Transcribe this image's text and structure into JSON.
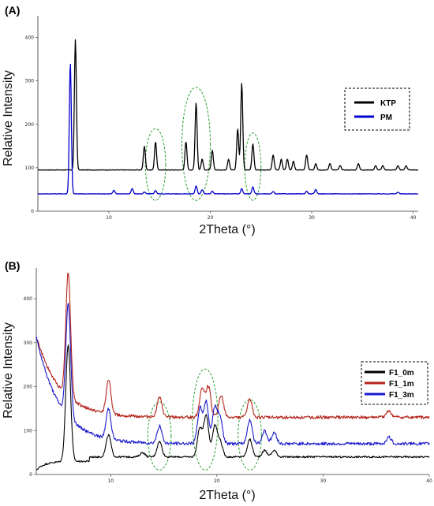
{
  "chart_data": [
    {
      "panel": "(A)",
      "type": "line",
      "xlabel": "2Theta (°)",
      "ylabel": "Relative Intensity",
      "xlim": [
        3,
        40.5
      ],
      "ylim": [
        0,
        450
      ],
      "x_ticks": [
        10,
        20,
        30,
        40
      ],
      "y_ticks": [
        0,
        100,
        200,
        300,
        400
      ],
      "legend": {
        "placement": "right",
        "entries": [
          "KTP",
          "PM"
        ]
      },
      "series": [
        {
          "name": "KTP",
          "color": "#000000",
          "baseline": 95,
          "x": [
            6.7,
            13.5,
            14.6,
            17.6,
            18.6,
            19.2,
            20.2,
            21.8,
            22.7,
            23.1,
            24.2,
            26.2,
            27.0,
            27.6,
            28.2,
            29.5,
            30.4,
            31.8,
            32.8,
            34.6,
            36.3,
            37.0,
            38.5,
            39.3
          ],
          "peaks": [
            395,
            150,
            160,
            160,
            250,
            120,
            140,
            120,
            190,
            295,
            155,
            130,
            120,
            120,
            115,
            130,
            110,
            110,
            105,
            110,
            105,
            105,
            105,
            105
          ]
        },
        {
          "name": "PM",
          "color": "#0000cc",
          "baseline": 40,
          "x": [
            6.2,
            10.5,
            12.3,
            13.5,
            14.6,
            18.6,
            19.2,
            20.2,
            23.1,
            24.2,
            26.2,
            29.5,
            30.4,
            38.5
          ],
          "peaks": [
            342,
            48,
            52,
            44,
            48,
            58,
            50,
            46,
            52,
            56,
            45,
            46,
            50,
            44
          ]
        }
      ],
      "annotations": [
        {
          "shape": "dashed-ellipse",
          "color": "#2a9d2a",
          "x_center": 14.6,
          "x_range": [
            13.6,
            15.6
          ],
          "y_range": [
            25,
            190
          ]
        },
        {
          "shape": "dashed-ellipse",
          "color": "#2a9d2a",
          "x_center": 18.6,
          "x_range": [
            17.2,
            20.0
          ],
          "y_range": [
            25,
            285
          ]
        },
        {
          "shape": "dashed-ellipse",
          "color": "#2a9d2a",
          "x_center": 24.2,
          "x_range": [
            23.4,
            25.0
          ],
          "y_range": [
            25,
            180
          ]
        }
      ]
    },
    {
      "panel": "(B)",
      "type": "line",
      "xlabel": "2Theta (°)",
      "ylabel": "Relative Intensity",
      "xlim": [
        3,
        40
      ],
      "ylim": [
        0,
        470
      ],
      "x_ticks": [
        10,
        20,
        30,
        40
      ],
      "y_ticks": [
        0,
        100,
        200,
        300,
        400
      ],
      "legend": {
        "placement": "right",
        "entries": [
          "F1_0m",
          "F1_1m",
          "F1_3m"
        ]
      },
      "series": [
        {
          "name": "F1_0m",
          "color": "#000000",
          "start_value": 10,
          "end_value": 45,
          "x": [
            6.0,
            9.8,
            13.0,
            14.6,
            18.4,
            19.0,
            19.8,
            20.3,
            23.1,
            24.5,
            25.4
          ],
          "peaks": [
            295,
            90,
            50,
            75,
            105,
            135,
            110,
            75,
            80,
            55,
            55
          ]
        },
        {
          "name": "F1_1m",
          "color": "#b5241b",
          "start_value": 315,
          "end_value": 130,
          "x": [
            6.0,
            9.8,
            14.6,
            18.6,
            19.2,
            20.4,
            23.1,
            36.2
          ],
          "peaks": [
            460,
            215,
            175,
            195,
            200,
            180,
            170,
            145
          ]
        },
        {
          "name": "F1_3m",
          "color": "#1a1acc",
          "start_value": 315,
          "end_value": 70,
          "x": [
            6.0,
            9.8,
            14.6,
            18.4,
            19.0,
            19.8,
            20.3,
            23.1,
            24.5,
            25.4,
            36.2
          ],
          "peaks": [
            388,
            150,
            110,
            150,
            165,
            150,
            130,
            125,
            100,
            95,
            85
          ]
        }
      ],
      "annotations": [
        {
          "shape": "dashed-ellipse",
          "color": "#2a9d2a",
          "x_center": 14.6,
          "x_range": [
            13.5,
            15.7
          ],
          "y_range": [
            10,
            165
          ]
        },
        {
          "shape": "dashed-ellipse",
          "color": "#2a9d2a",
          "x_center": 18.9,
          "x_range": [
            17.7,
            20.1
          ],
          "y_range": [
            10,
            240
          ]
        },
        {
          "shape": "dashed-ellipse",
          "color": "#2a9d2a",
          "x_center": 23.1,
          "x_range": [
            22.0,
            24.2
          ],
          "y_range": [
            10,
            170
          ]
        }
      ]
    }
  ]
}
